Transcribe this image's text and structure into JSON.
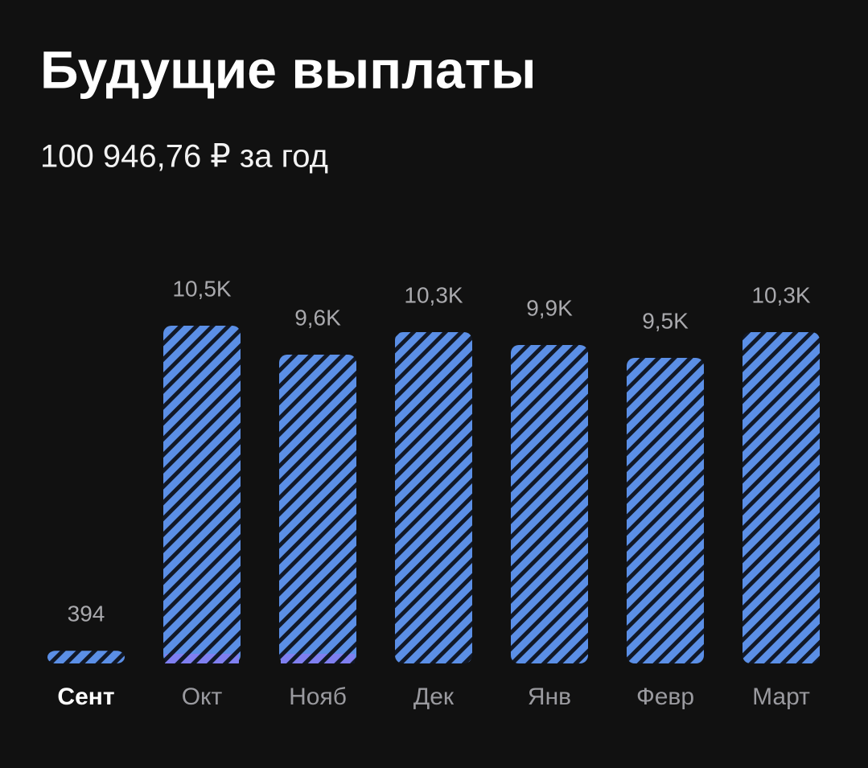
{
  "chart_data": {
    "type": "bar",
    "title": "Будущие выплаты",
    "subtitle": "100 946,76 ₽ за год",
    "categories": [
      "Сент",
      "Окт",
      "Нояб",
      "Дек",
      "Янв",
      "Февр",
      "Март"
    ],
    "values": [
      394,
      10500,
      9600,
      10300,
      9900,
      9500,
      10300
    ],
    "value_labels": [
      "394",
      "10,5K",
      "9,6K",
      "10,3K",
      "9,9K",
      "9,5K",
      "10,3K"
    ],
    "color": "#5b8fe6",
    "segments": {
      "color": "#7f7ff0",
      "values": [
        null,
        300,
        300,
        null,
        null,
        null,
        null
      ]
    }
  }
}
